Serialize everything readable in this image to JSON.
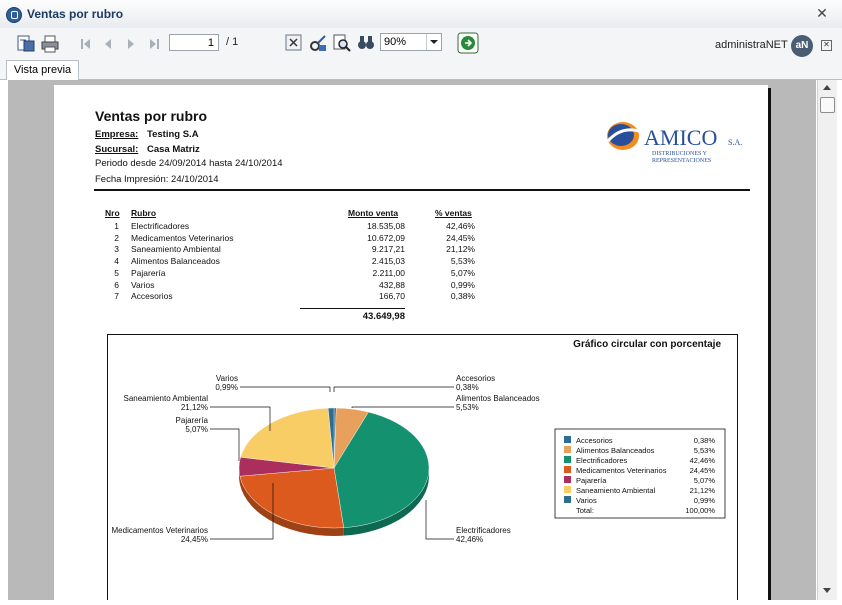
{
  "window": {
    "title": "Ventas por rubro"
  },
  "toolbar": {
    "current_page": "1",
    "total_pages": "/ 1",
    "zoom": "90%",
    "brand": "administraNET",
    "brand_logo_text": "aN"
  },
  "tabs": [
    {
      "label": "Vista previa"
    }
  ],
  "report": {
    "title": "Ventas por rubro",
    "empresa_label": "Empresa:",
    "empresa_value": "Testing S.A",
    "sucursal_label": "Sucursal:",
    "sucursal_value": "Casa Matriz",
    "periodo": "Periodo desde  24/09/2014 hasta 24/10/2014",
    "fecha": "Fecha Impresión: 24/10/2014",
    "logo": {
      "name": "AMICO",
      "suffix": "S.A.",
      "line1": "DISTRIBUCIONES Y",
      "line2": "REPRESENTACIONES"
    },
    "columns": {
      "nro": "Nro",
      "rubro": "Rubro",
      "monto": "Monto venta",
      "pct": "% ventas"
    },
    "rows": [
      {
        "nro": "1",
        "rubro": "Electrificadores",
        "monto": "18.535,08",
        "pct": "42,46%"
      },
      {
        "nro": "2",
        "rubro": "Medicamentos Veterinarios",
        "monto": "10.672,09",
        "pct": "24,45%"
      },
      {
        "nro": "3",
        "rubro": "Saneamiento Ambiental",
        "monto": "9.217,21",
        "pct": "21,12%"
      },
      {
        "nro": "4",
        "rubro": "Alimentos Balanceados",
        "monto": "2.415,03",
        "pct": "5,53%"
      },
      {
        "nro": "5",
        "rubro": "Pajarería",
        "monto": "2.211,00",
        "pct": "5,07%"
      },
      {
        "nro": "6",
        "rubro": "Varios",
        "monto": "432,88",
        "pct": "0,99%"
      },
      {
        "nro": "7",
        "rubro": "Accesorios",
        "monto": "166,70",
        "pct": "0,38%"
      }
    ],
    "total": "43.649,98"
  },
  "colors": {
    "title_text": "#1c3b63",
    "logo_blue": "#2a4f9a",
    "logo_orange": "#f28c1e"
  },
  "chart_data": {
    "type": "pie",
    "title": "Gráfico circular con porcentaje",
    "slices": [
      {
        "name": "Accesorios",
        "value": 0.38,
        "label": "0,38%",
        "color": "#2f6b96"
      },
      {
        "name": "Alimentos Balanceados",
        "value": 5.53,
        "label": "5,53%",
        "color": "#e8a15c"
      },
      {
        "name": "Electrificadores",
        "value": 42.46,
        "label": "42,46%",
        "color": "#149270"
      },
      {
        "name": "Medicamentos Veterinarios",
        "value": 24.45,
        "label": "24,45%",
        "color": "#dc5a1d"
      },
      {
        "name": "Pajarería",
        "value": 5.07,
        "label": "5,07%",
        "color": "#ab2f5c"
      },
      {
        "name": "Saneamiento Ambiental",
        "value": 21.12,
        "label": "21,12%",
        "color": "#f9cd66"
      },
      {
        "name": "Varios",
        "value": 0.99,
        "label": "0,99%",
        "color": "#2d6d8e"
      }
    ],
    "legend_position": "right",
    "legend_total_label": "Total:",
    "legend_total_value": "100,00%"
  }
}
